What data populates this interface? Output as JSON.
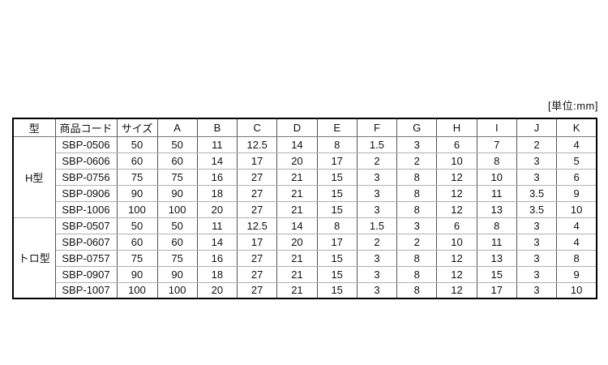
{
  "unit_label": "[単位:mm]",
  "table": {
    "headers": [
      "型",
      "商品コード",
      "サイズ",
      "A",
      "B",
      "C",
      "D",
      "E",
      "F",
      "G",
      "H",
      "I",
      "J",
      "K"
    ],
    "groups": [
      {
        "type": "H型",
        "rows": [
          {
            "code": "SBP-0506",
            "values": [
              "50",
              "50",
              "11",
              "12.5",
              "14",
              "8",
              "1.5",
              "3",
              "6",
              "7",
              "2",
              "4"
            ]
          },
          {
            "code": "SBP-0606",
            "values": [
              "60",
              "60",
              "14",
              "17",
              "20",
              "17",
              "2",
              "2",
              "10",
              "8",
              "3",
              "5"
            ]
          },
          {
            "code": "SBP-0756",
            "values": [
              "75",
              "75",
              "16",
              "27",
              "21",
              "15",
              "3",
              "8",
              "12",
              "10",
              "3",
              "6"
            ]
          },
          {
            "code": "SBP-0906",
            "values": [
              "90",
              "90",
              "18",
              "27",
              "21",
              "15",
              "3",
              "8",
              "12",
              "11",
              "3.5",
              "9"
            ]
          },
          {
            "code": "SBP-1006",
            "values": [
              "100",
              "100",
              "20",
              "27",
              "21",
              "15",
              "3",
              "8",
              "12",
              "13",
              "3.5",
              "10"
            ]
          }
        ]
      },
      {
        "type": "トロ型",
        "rows": [
          {
            "code": "SBP-0507",
            "values": [
              "50",
              "50",
              "11",
              "12.5",
              "14",
              "8",
              "1.5",
              "3",
              "6",
              "8",
              "3",
              "4"
            ]
          },
          {
            "code": "SBP-0607",
            "values": [
              "60",
              "60",
              "14",
              "17",
              "20",
              "17",
              "2",
              "2",
              "10",
              "11",
              "3",
              "4"
            ]
          },
          {
            "code": "SBP-0757",
            "values": [
              "75",
              "75",
              "16",
              "27",
              "21",
              "15",
              "3",
              "8",
              "12",
              "13",
              "3",
              "8"
            ]
          },
          {
            "code": "SBP-0907",
            "values": [
              "90",
              "90",
              "18",
              "27",
              "21",
              "15",
              "3",
              "8",
              "12",
              "15",
              "3",
              "9"
            ]
          },
          {
            "code": "SBP-1007",
            "values": [
              "100",
              "100",
              "20",
              "27",
              "21",
              "15",
              "3",
              "8",
              "12",
              "17",
              "3",
              "10"
            ]
          }
        ]
      }
    ]
  }
}
